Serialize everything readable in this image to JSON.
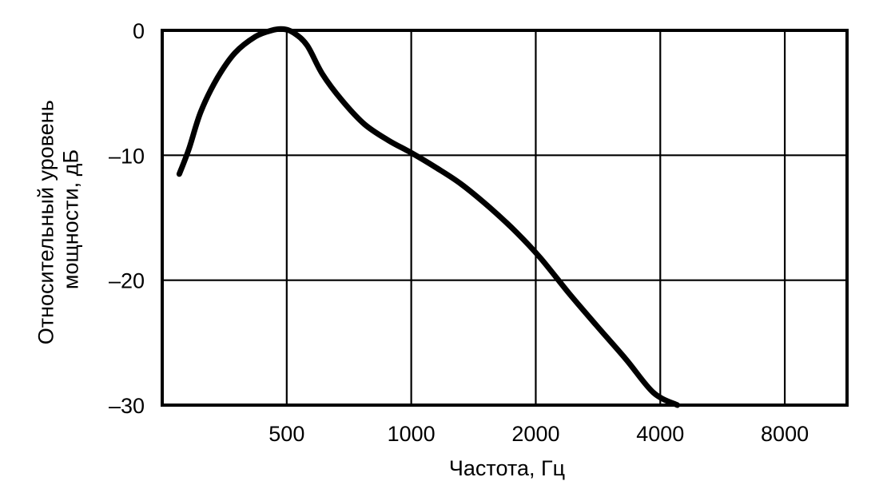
{
  "chart_data": {
    "type": "line",
    "title": "",
    "xlabel": "Частота, Гц",
    "ylabel_lines": [
      "Относительный уровень",
      "мощности, дБ"
    ],
    "x_scale": "log2",
    "xlim": [
      250,
      11314
    ],
    "ylim": [
      -30,
      0
    ],
    "x_ticks": [
      500,
      1000,
      2000,
      4000,
      8000
    ],
    "x_tick_labels": [
      "500",
      "1000",
      "2000",
      "4000",
      "8000"
    ],
    "y_ticks": [
      0,
      -10,
      -20,
      -30
    ],
    "y_tick_labels": [
      "0",
      "–10",
      "–20",
      "–30"
    ],
    "grid": true,
    "legend": "none",
    "line_color": "#000000",
    "series": [
      {
        "x": [
          275,
          290,
          310,
          340,
          375,
          420,
          460,
          490,
          520,
          560,
          610,
          680,
          770,
          880,
          1000,
          1150,
          1320,
          1550,
          1800,
          2050,
          2400,
          2800,
          3300,
          3850,
          4400
        ],
        "y": [
          -11.5,
          -9.5,
          -6.5,
          -3.8,
          -1.8,
          -0.5,
          0,
          0.1,
          -0.2,
          -1.2,
          -3.5,
          -5.6,
          -7.5,
          -8.8,
          -9.8,
          -11,
          -12.3,
          -14.2,
          -16.2,
          -18.2,
          -21,
          -23.6,
          -26.3,
          -29,
          -30
        ]
      }
    ]
  }
}
